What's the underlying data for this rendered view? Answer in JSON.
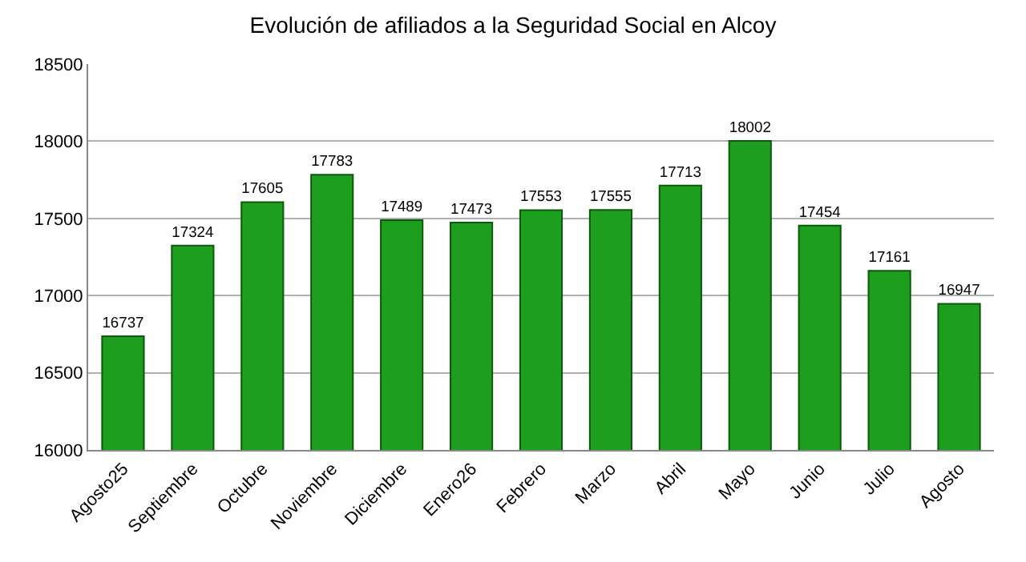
{
  "chart_data": {
    "type": "bar",
    "title": "Evolución de afiliados a la Seguridad Social en Alcoy",
    "categories": [
      "Agosto25",
      "Septiembre",
      "Octubre",
      "Noviembre",
      "Diciembre",
      "Enero26",
      "Febrero",
      "Marzo",
      "Abril",
      "Mayo",
      "Junio",
      "Julio",
      "Agosto"
    ],
    "values": [
      16737,
      17324,
      17605,
      17783,
      17489,
      17473,
      17553,
      17555,
      17713,
      18002,
      17454,
      17161,
      16947
    ],
    "color": "#1e9e1e",
    "ylim": [
      16000,
      18500
    ],
    "yticks": [
      16000,
      16500,
      17000,
      17500,
      18000,
      18500
    ],
    "grid": "y",
    "data_labels": true
  }
}
